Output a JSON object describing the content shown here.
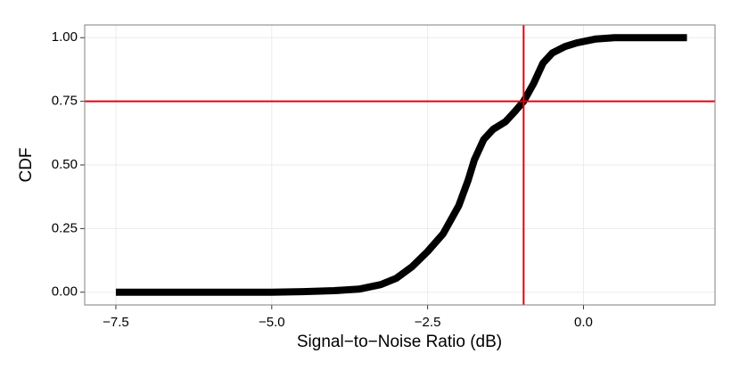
{
  "chart_data": {
    "type": "line",
    "x_label": "Signal−to−Noise Ratio (dB)",
    "y_label": "CDF",
    "x": [
      -7.5,
      -5,
      -4.5,
      -4,
      -3.6,
      -3.25,
      -3.0,
      -2.75,
      -2.5,
      -2.25,
      -2.0,
      -1.85,
      -1.75,
      -1.6,
      -1.45,
      -1.25,
      -1.1,
      -0.96,
      -0.8,
      -0.65,
      -0.5,
      -0.3,
      -0.1,
      0.2,
      0.5,
      1.0,
      1.66
    ],
    "values": [
      0,
      0,
      0.002,
      0.006,
      0.012,
      0.03,
      0.055,
      0.1,
      0.16,
      0.23,
      0.34,
      0.44,
      0.52,
      0.6,
      0.64,
      0.67,
      0.71,
      0.75,
      0.82,
      0.9,
      0.94,
      0.965,
      0.98,
      0.995,
      1.0,
      1.0,
      1.0
    ],
    "color": "#000000",
    "xlim": [
      -8.0,
      2.11
    ],
    "ylim": [
      -0.05,
      1.05
    ],
    "xticks": [
      {
        "value": -7.5,
        "label": "−7.5"
      },
      {
        "value": -5,
        "label": "−5.0"
      },
      {
        "value": -2.5,
        "label": "−2.5"
      },
      {
        "value": 0,
        "label": "0.0"
      }
    ],
    "yticks": [
      {
        "value": 0,
        "label": "0.00"
      },
      {
        "value": 0.25,
        "label": "0.25"
      },
      {
        "value": 0.5,
        "label": "0.50"
      },
      {
        "value": 0.75,
        "label": "0.75"
      },
      {
        "value": 1,
        "label": "1.00"
      }
    ],
    "grid": true,
    "vline": -0.96,
    "hline": 0.75,
    "reference_color": "#e8000b"
  }
}
